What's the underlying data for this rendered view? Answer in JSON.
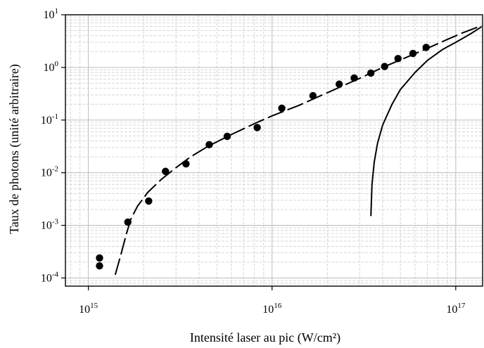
{
  "chart_data": {
    "type": "scatter",
    "title": "",
    "xlabel": "Intensité laser au pic (W/cm²)",
    "ylabel": "Taux de photons (unité arbitraire)",
    "xscale": "log",
    "yscale": "log",
    "xlim": [
      750000000000000.0,
      1.4e+17
    ],
    "ylim": [
      7e-05,
      10
    ],
    "grid": true,
    "x_ticks": [
      {
        "value": 1000000000000000.0,
        "base": "10",
        "exp": "15"
      },
      {
        "value": 1e+16,
        "base": "10",
        "exp": "16"
      },
      {
        "value": 1e+17,
        "base": "10",
        "exp": "17"
      }
    ],
    "y_ticks": [
      {
        "value": 0.0001,
        "base": "10",
        "exp": "-4"
      },
      {
        "value": 0.001,
        "base": "10",
        "exp": "-3"
      },
      {
        "value": 0.01,
        "base": "10",
        "exp": "-2"
      },
      {
        "value": 0.1,
        "base": "10",
        "exp": "-1"
      },
      {
        "value": 1,
        "base": "10",
        "exp": "0"
      },
      {
        "value": 10,
        "base": "10",
        "exp": "1"
      }
    ],
    "series": [
      {
        "style": "markers",
        "color": "#000000",
        "points": [
          [
            1150000000000000.0,
            0.00024
          ],
          [
            1150000000000000.0,
            0.00017
          ],
          [
            1640000000000000.0,
            0.00115
          ],
          [
            2130000000000000.0,
            0.0029
          ],
          [
            2630000000000000.0,
            0.0106
          ],
          [
            3400000000000000.0,
            0.0147
          ],
          [
            4550000000000000.0,
            0.034
          ],
          [
            5700000000000000.0,
            0.049
          ],
          [
            8300000000000000.0,
            0.072
          ],
          [
            1.13e+16,
            0.168
          ],
          [
            1.67e+16,
            0.29
          ],
          [
            2.32e+16,
            0.48
          ],
          [
            2.8e+16,
            0.63
          ],
          [
            3.45e+16,
            0.78
          ],
          [
            4.1e+16,
            1.04
          ],
          [
            4.85e+16,
            1.47
          ],
          [
            5.85e+16,
            1.84
          ],
          [
            6.9e+16,
            2.4
          ]
        ]
      },
      {
        "style": "dashed",
        "color": "#000000",
        "points": [
          [
            1400000000000000.0,
            0.000115
          ],
          [
            1500000000000000.0,
            0.00027
          ],
          [
            1600000000000000.0,
            0.00063
          ],
          [
            1700000000000000.0,
            0.0013
          ],
          [
            1850000000000000.0,
            0.0023
          ],
          [
            2100000000000000.0,
            0.0042
          ],
          [
            2500000000000000.0,
            0.0075
          ],
          [
            3000000000000000.0,
            0.0125
          ],
          [
            3600000000000000.0,
            0.02
          ],
          [
            4500000000000000.0,
            0.032
          ],
          [
            6000000000000000.0,
            0.053
          ],
          [
            8000000000000000.0,
            0.085
          ],
          [
            1e+16,
            0.12
          ],
          [
            1.4e+16,
            0.19
          ],
          [
            2e+16,
            0.33
          ],
          [
            3e+16,
            0.62
          ],
          [
            4e+16,
            1.0
          ],
          [
            5.5e+16,
            1.6
          ],
          [
            7e+16,
            2.3
          ],
          [
            9e+16,
            3.4
          ],
          [
            1.1e+17,
            4.6
          ],
          [
            1.38e+17,
            6.2
          ]
        ]
      },
      {
        "style": "solid",
        "color": "#000000",
        "points": [
          [
            3.45e+16,
            0.0015
          ],
          [
            3.5e+16,
            0.006
          ],
          [
            3.6e+16,
            0.016
          ],
          [
            3.75e+16,
            0.036
          ],
          [
            4e+16,
            0.08
          ],
          [
            4.5e+16,
            0.2
          ],
          [
            5e+16,
            0.38
          ],
          [
            6e+16,
            0.8
          ],
          [
            7e+16,
            1.35
          ],
          [
            8.5e+16,
            2.2
          ],
          [
            1e+17,
            3.0
          ],
          [
            1.2e+17,
            4.3
          ],
          [
            1.38e+17,
            5.9
          ]
        ]
      }
    ]
  }
}
